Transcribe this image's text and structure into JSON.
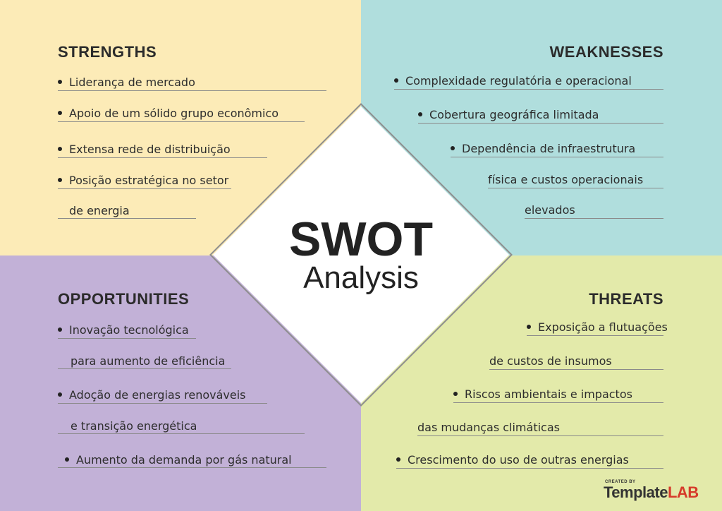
{
  "center": {
    "title": "SWOT",
    "subtitle": "Analysis"
  },
  "strengths": {
    "heading": "STRENGTHS",
    "items": [
      "Liderança de mercado",
      "Apoio de um sólido grupo econômico",
      "Extensa rede de distribuição",
      "Posição estratégica no setor",
      "de energia"
    ]
  },
  "weaknesses": {
    "heading": "WEAKNESSES",
    "items": [
      "Complexidade regulatória e operacional",
      "Cobertura geográfica limitada",
      "Dependência de infraestrutura",
      "física e custos operacionais",
      "elevados"
    ]
  },
  "opportunities": {
    "heading": "OPPORTUNITIES",
    "items": [
      "Inovação tecnológica",
      "para aumento de eficiência",
      "Adoção de energias renováveis",
      "e transição energética",
      "Aumento da demanda por gás natural"
    ]
  },
  "threats": {
    "heading": "THREATS",
    "items": [
      "Exposição a flutuações",
      "de custos de insumos",
      "Riscos ambientais e impactos",
      "das mudanças climáticas",
      "Crescimento do uso de outras energias"
    ]
  },
  "logo": {
    "small": "CREATED BY",
    "part1": "Template",
    "part2": "LAB"
  },
  "colors": {
    "strengths": "#fcebb7",
    "weaknesses": "#b0dedd",
    "opportunities": "#c2b1d7",
    "threats": "#e3eaaa",
    "logo_accent": "#d63b2a"
  }
}
